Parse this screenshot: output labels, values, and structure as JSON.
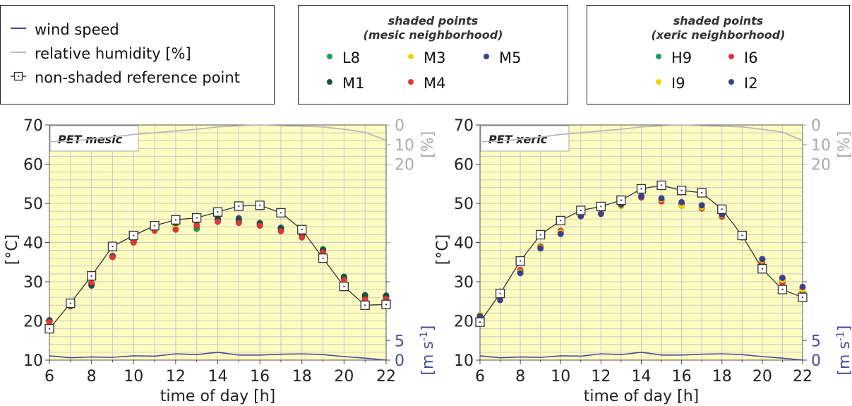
{
  "legends": {
    "lines": {
      "wind_speed": "wind speed",
      "relative_humidity": "relative humidity [%]",
      "reference_point": "non-shaded reference point"
    },
    "mesic": {
      "title_line1": "shaded points",
      "title_line2": "(mesic neighborhood)",
      "items": [
        "L8",
        "M3",
        "M5",
        "M1",
        "M4"
      ]
    },
    "xeric": {
      "title_line1": "shaded points",
      "title_line2": "(xeric neighborhood)",
      "items": [
        "H9",
        "I6",
        "I9",
        "I2"
      ]
    }
  },
  "colors": {
    "L8": "#1aa05a",
    "M3": "#f2d200",
    "M5": "#3a3f8f",
    "M1": "#12573a",
    "M4": "#e0353a",
    "H9": "#1aa05a",
    "I6": "#e0353a",
    "I9": "#f2d200",
    "I2": "#3a3f8f",
    "wind": "#4a4a9a",
    "humidity": "#b8b8b8",
    "plot_bg": "#fdfdc0",
    "grid": "#c8c8c8"
  },
  "chart_data": [
    {
      "type": "line",
      "title": "PET mesic",
      "xlabel": "time of day [h]",
      "ylabel": "[°C]",
      "y2label_humidity": "[%]",
      "y2label_wind": "[m s-1]",
      "xlim": [
        6,
        22
      ],
      "ylim": [
        10,
        70
      ],
      "x_ticks": [
        6,
        8,
        10,
        12,
        14,
        16,
        18,
        20,
        22
      ],
      "y_ticks": [
        10,
        20,
        30,
        40,
        50,
        60,
        70
      ],
      "humidity_ticks": [
        0,
        10,
        20
      ],
      "wind_ticks": [
        0,
        5
      ],
      "grid": true,
      "x": [
        6,
        7,
        8,
        9,
        10,
        11,
        12,
        13,
        14,
        15,
        16,
        17,
        18,
        19,
        20,
        21,
        22
      ],
      "reference": [
        18,
        24.5,
        31.5,
        39,
        41.8,
        44.3,
        45.8,
        46.3,
        47.8,
        49.3,
        49.5,
        47.6,
        43.3,
        36,
        28.8,
        24,
        24.2
      ],
      "series": [
        {
          "name": "L8",
          "values": [
            20,
            24.5,
            29.5,
            36.5,
            40.3,
            43.3,
            44.3,
            43.5,
            46,
            45.3,
            44.5,
            43.6,
            42,
            38.3,
            31.3,
            26.5,
            26.5
          ]
        },
        {
          "name": "M3",
          "values": [
            19.8,
            24.3,
            29.5,
            36.5,
            40.2,
            43,
            44,
            45,
            45.8,
            45.5,
            44.6,
            43.3,
            41.7,
            37.8,
            30.8,
            26.3,
            26.2
          ]
        },
        {
          "name": "M5",
          "values": [
            20.2,
            24.7,
            29,
            36.6,
            40.4,
            43.8,
            45.3,
            46,
            46.2,
            46.2,
            45,
            43.8,
            42.2,
            38,
            31,
            26.6,
            26.4
          ]
        },
        {
          "name": "M1",
          "values": [
            19.9,
            24.6,
            29.3,
            36.4,
            40.5,
            43.5,
            45,
            45.4,
            45.8,
            45.7,
            44.8,
            43.5,
            41.9,
            38.1,
            31.2,
            26.4,
            26.3
          ]
        },
        {
          "name": "M4",
          "values": [
            19.7,
            23.7,
            29.8,
            36.3,
            40,
            43.1,
            43.3,
            44.3,
            45.3,
            45,
            44.3,
            42.9,
            41.3,
            37.5,
            30.5,
            25.5,
            25.6
          ]
        }
      ],
      "humidity": [
        8.5,
        8.3,
        7.2,
        6.2,
        4.8,
        4.0,
        3.0,
        2.2,
        1.0,
        0.4,
        0.0,
        0.4,
        0.6,
        1.0,
        2.2,
        3.7,
        7.9
      ],
      "wind": [
        1.1,
        0.6,
        0.8,
        0.7,
        1.1,
        1.0,
        1.6,
        1.4,
        2.0,
        1.3,
        1.3,
        1.5,
        1.6,
        1.4,
        0.9,
        0.5,
        0.0
      ]
    },
    {
      "type": "line",
      "title": "PET xeric",
      "xlabel": "time of day [h]",
      "ylabel": "[°C]",
      "y2label_humidity": "[%]",
      "y2label_wind": "[m s-1]",
      "xlim": [
        6,
        22
      ],
      "ylim": [
        10,
        70
      ],
      "x_ticks": [
        6,
        8,
        10,
        12,
        14,
        16,
        18,
        20,
        22
      ],
      "y_ticks": [
        10,
        20,
        30,
        40,
        50,
        60,
        70
      ],
      "humidity_ticks": [
        0,
        10,
        20
      ],
      "wind_ticks": [
        0,
        5
      ],
      "grid": true,
      "x": [
        6,
        7,
        8,
        9,
        10,
        11,
        12,
        13,
        14,
        15,
        16,
        17,
        18,
        19,
        20,
        21,
        22
      ],
      "reference": [
        19.7,
        27,
        35.3,
        42,
        45.6,
        48.2,
        49.2,
        50.8,
        53.7,
        54.6,
        53.3,
        52.7,
        48.5,
        41.8,
        33.3,
        28,
        26
      ],
      "series": [
        {
          "name": "H9",
          "values": [
            21.3,
            26.5,
            32.7,
            38.8,
            42.5,
            47,
            47.5,
            49.6,
            51.8,
            51,
            49.8,
            49.5,
            47,
            41.8,
            35.7,
            30.7,
            28.5
          ]
        },
        {
          "name": "I6",
          "values": [
            21,
            27.5,
            33,
            39,
            43,
            47.2,
            48,
            49.5,
            51.5,
            50.5,
            50,
            48.7,
            46.6,
            41.3,
            34.8,
            29.8,
            27.5
          ]
        },
        {
          "name": "I9",
          "values": [
            21.5,
            26.3,
            32.5,
            38.7,
            42.6,
            47,
            47.7,
            49.3,
            51.8,
            51,
            49.3,
            49,
            47,
            41.6,
            35.5,
            30.4,
            28
          ]
        },
        {
          "name": "I2",
          "values": [
            21.2,
            25.3,
            32.2,
            38.5,
            42.2,
            46.7,
            47.3,
            49.7,
            51.8,
            51.3,
            50.3,
            49.5,
            47.2,
            42,
            35.8,
            31,
            28.7
          ]
        }
      ],
      "humidity": [
        8.5,
        8.3,
        7.2,
        6.2,
        4.8,
        4.0,
        3.0,
        2.2,
        1.0,
        0.4,
        0.0,
        0.4,
        0.6,
        1.0,
        2.2,
        3.7,
        7.9
      ],
      "wind": [
        1.1,
        0.6,
        0.8,
        0.7,
        1.1,
        1.0,
        1.6,
        1.4,
        2.0,
        1.3,
        1.3,
        1.5,
        1.6,
        1.4,
        0.9,
        0.5,
        0.0
      ]
    }
  ]
}
